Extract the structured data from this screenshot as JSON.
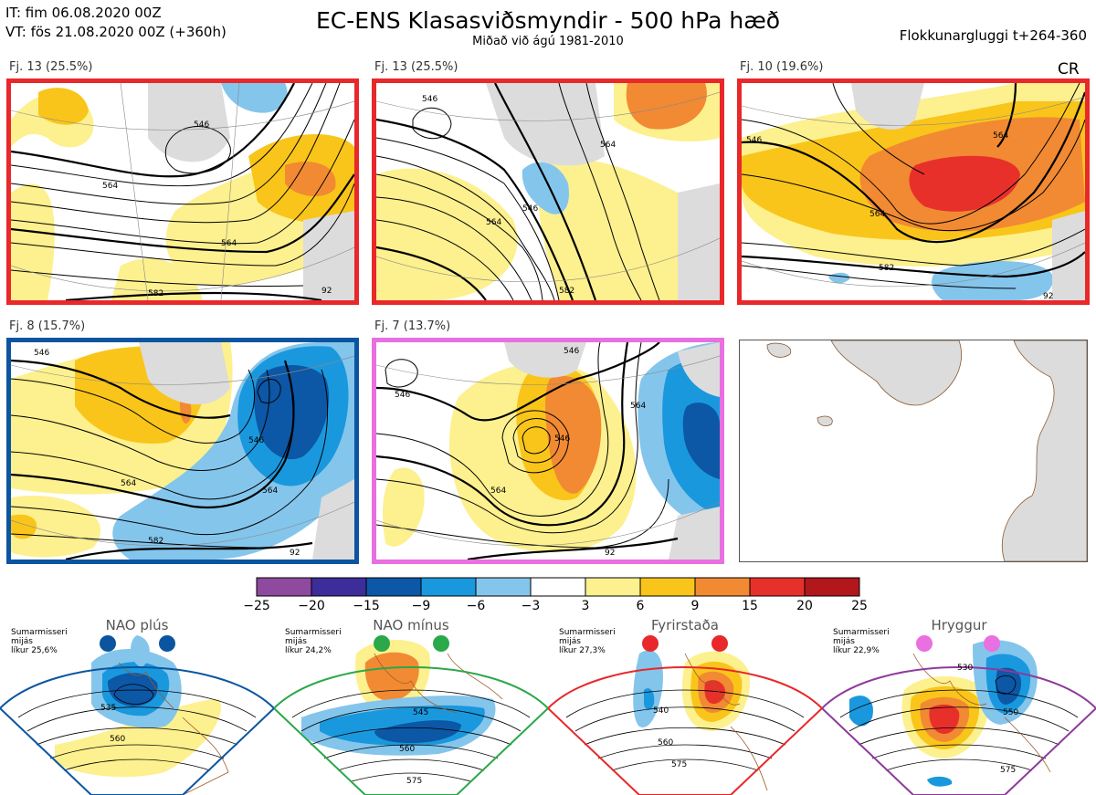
{
  "header": {
    "it_line": "IT: fim 06.08.2020 00Z",
    "vt_line": "VT: fös 21.08.2020 00Z  (+360h)",
    "title": "EC-ENS Klasasviðsmyndir - 500 hPa hæð",
    "subtitle": "Miðað við ágú 1981-2010",
    "window": "Flokkunargluggi t+264-360",
    "corner": "CR"
  },
  "panels": [
    {
      "label": "Fj. 13 (25.5%)",
      "border": "#e8282a",
      "contours": [
        "546",
        "564",
        "564",
        "582",
        "92"
      ]
    },
    {
      "label": "Fj. 13 (25.5%)",
      "border": "#e8282a",
      "contours": [
        "546",
        "564",
        "546",
        "564",
        "582"
      ]
    },
    {
      "label": "Fj. 10 (19.6%)",
      "border": "#e8282a",
      "contours": [
        "546",
        "564",
        "564",
        "582",
        "92"
      ]
    },
    {
      "label": "Fj. 8 (15.7%)",
      "border": "#0b55a0",
      "contours": [
        "546",
        "564",
        "546",
        "564",
        "582",
        "92"
      ]
    },
    {
      "label": "Fj. 7 (13.7%)",
      "border": "#e870e0",
      "contours": [
        "546",
        "546",
        "546",
        "564",
        "564",
        "92"
      ]
    },
    {
      "label": "",
      "border": "",
      "contours": []
    }
  ],
  "colorbar": {
    "ticks": [
      "−25",
      "−20",
      "−15",
      "−9",
      "−6",
      "−3",
      "3",
      "6",
      "9",
      "15",
      "20",
      "25"
    ],
    "colors": [
      "#8e4a9e",
      "#3d2d9a",
      "#0c57a6",
      "#1a98dd",
      "#84c5ec",
      "#ffffff",
      "#fdf08e",
      "#f9c51a",
      "#f18a33",
      "#e8302b",
      "#b2171c"
    ]
  },
  "regimes": [
    {
      "name": "NAO plús",
      "color": "#0b55a0",
      "note": [
        "Sumarmisseri",
        "mijás",
        "líkur 25,6%"
      ],
      "contours": [
        "535",
        "560"
      ]
    },
    {
      "name": "NAO mínus",
      "color": "#2aa84a",
      "note": [
        "Sumarmisseri",
        "mijás",
        "líkur 24,2%"
      ],
      "contours": [
        "545",
        "560",
        "575"
      ]
    },
    {
      "name": "Fyrirstaða",
      "color": "#e8282a",
      "note": [
        "Sumarmisseri",
        "mijás",
        "líkur 27,3%"
      ],
      "contours": [
        "540",
        "560",
        "575"
      ]
    },
    {
      "name": "Hryggur",
      "color": "#8e3a9a",
      "dot_color": "#e870e0",
      "note": [
        "Sumarmisseri",
        "mijás",
        "líkur 22,9%"
      ],
      "contours": [
        "530",
        "550",
        "575"
      ]
    }
  ]
}
